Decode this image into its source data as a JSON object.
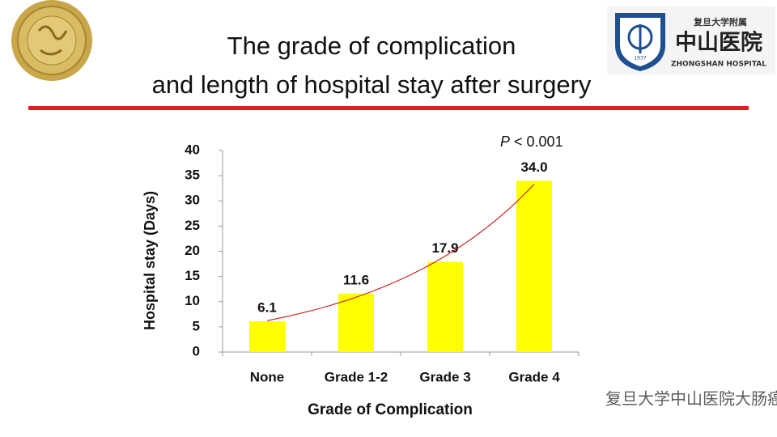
{
  "slide": {
    "title_lines": [
      "The grade of complication",
      "and length of hospital stay after surgery"
    ],
    "logo": {
      "top": "复旦大学附属",
      "name": "中山医院",
      "english": "ZHONGSHAN HOSPITAL",
      "year": "1937"
    },
    "watermark": "复旦大学中山医院大肠癌诊疗中心"
  },
  "chart_data": {
    "type": "bar",
    "categories": [
      "None",
      "Grade 1-2",
      "Grade 3",
      "Grade 4"
    ],
    "values": [
      6.1,
      11.6,
      17.9,
      34.0
    ],
    "value_labels": [
      "6.1",
      "11.6",
      "17.9",
      "34.0"
    ],
    "color": "#ffff00",
    "trend_color": "#cc0000",
    "x_label": "Grade of Complication",
    "y_label": "Hospital stay (Days)",
    "annotation": {
      "italic": "P",
      "text": " < 0.001"
    },
    "ylim": [
      0,
      40
    ],
    "yticks": [
      0,
      5,
      10,
      15,
      20,
      25,
      30,
      35,
      40
    ]
  }
}
